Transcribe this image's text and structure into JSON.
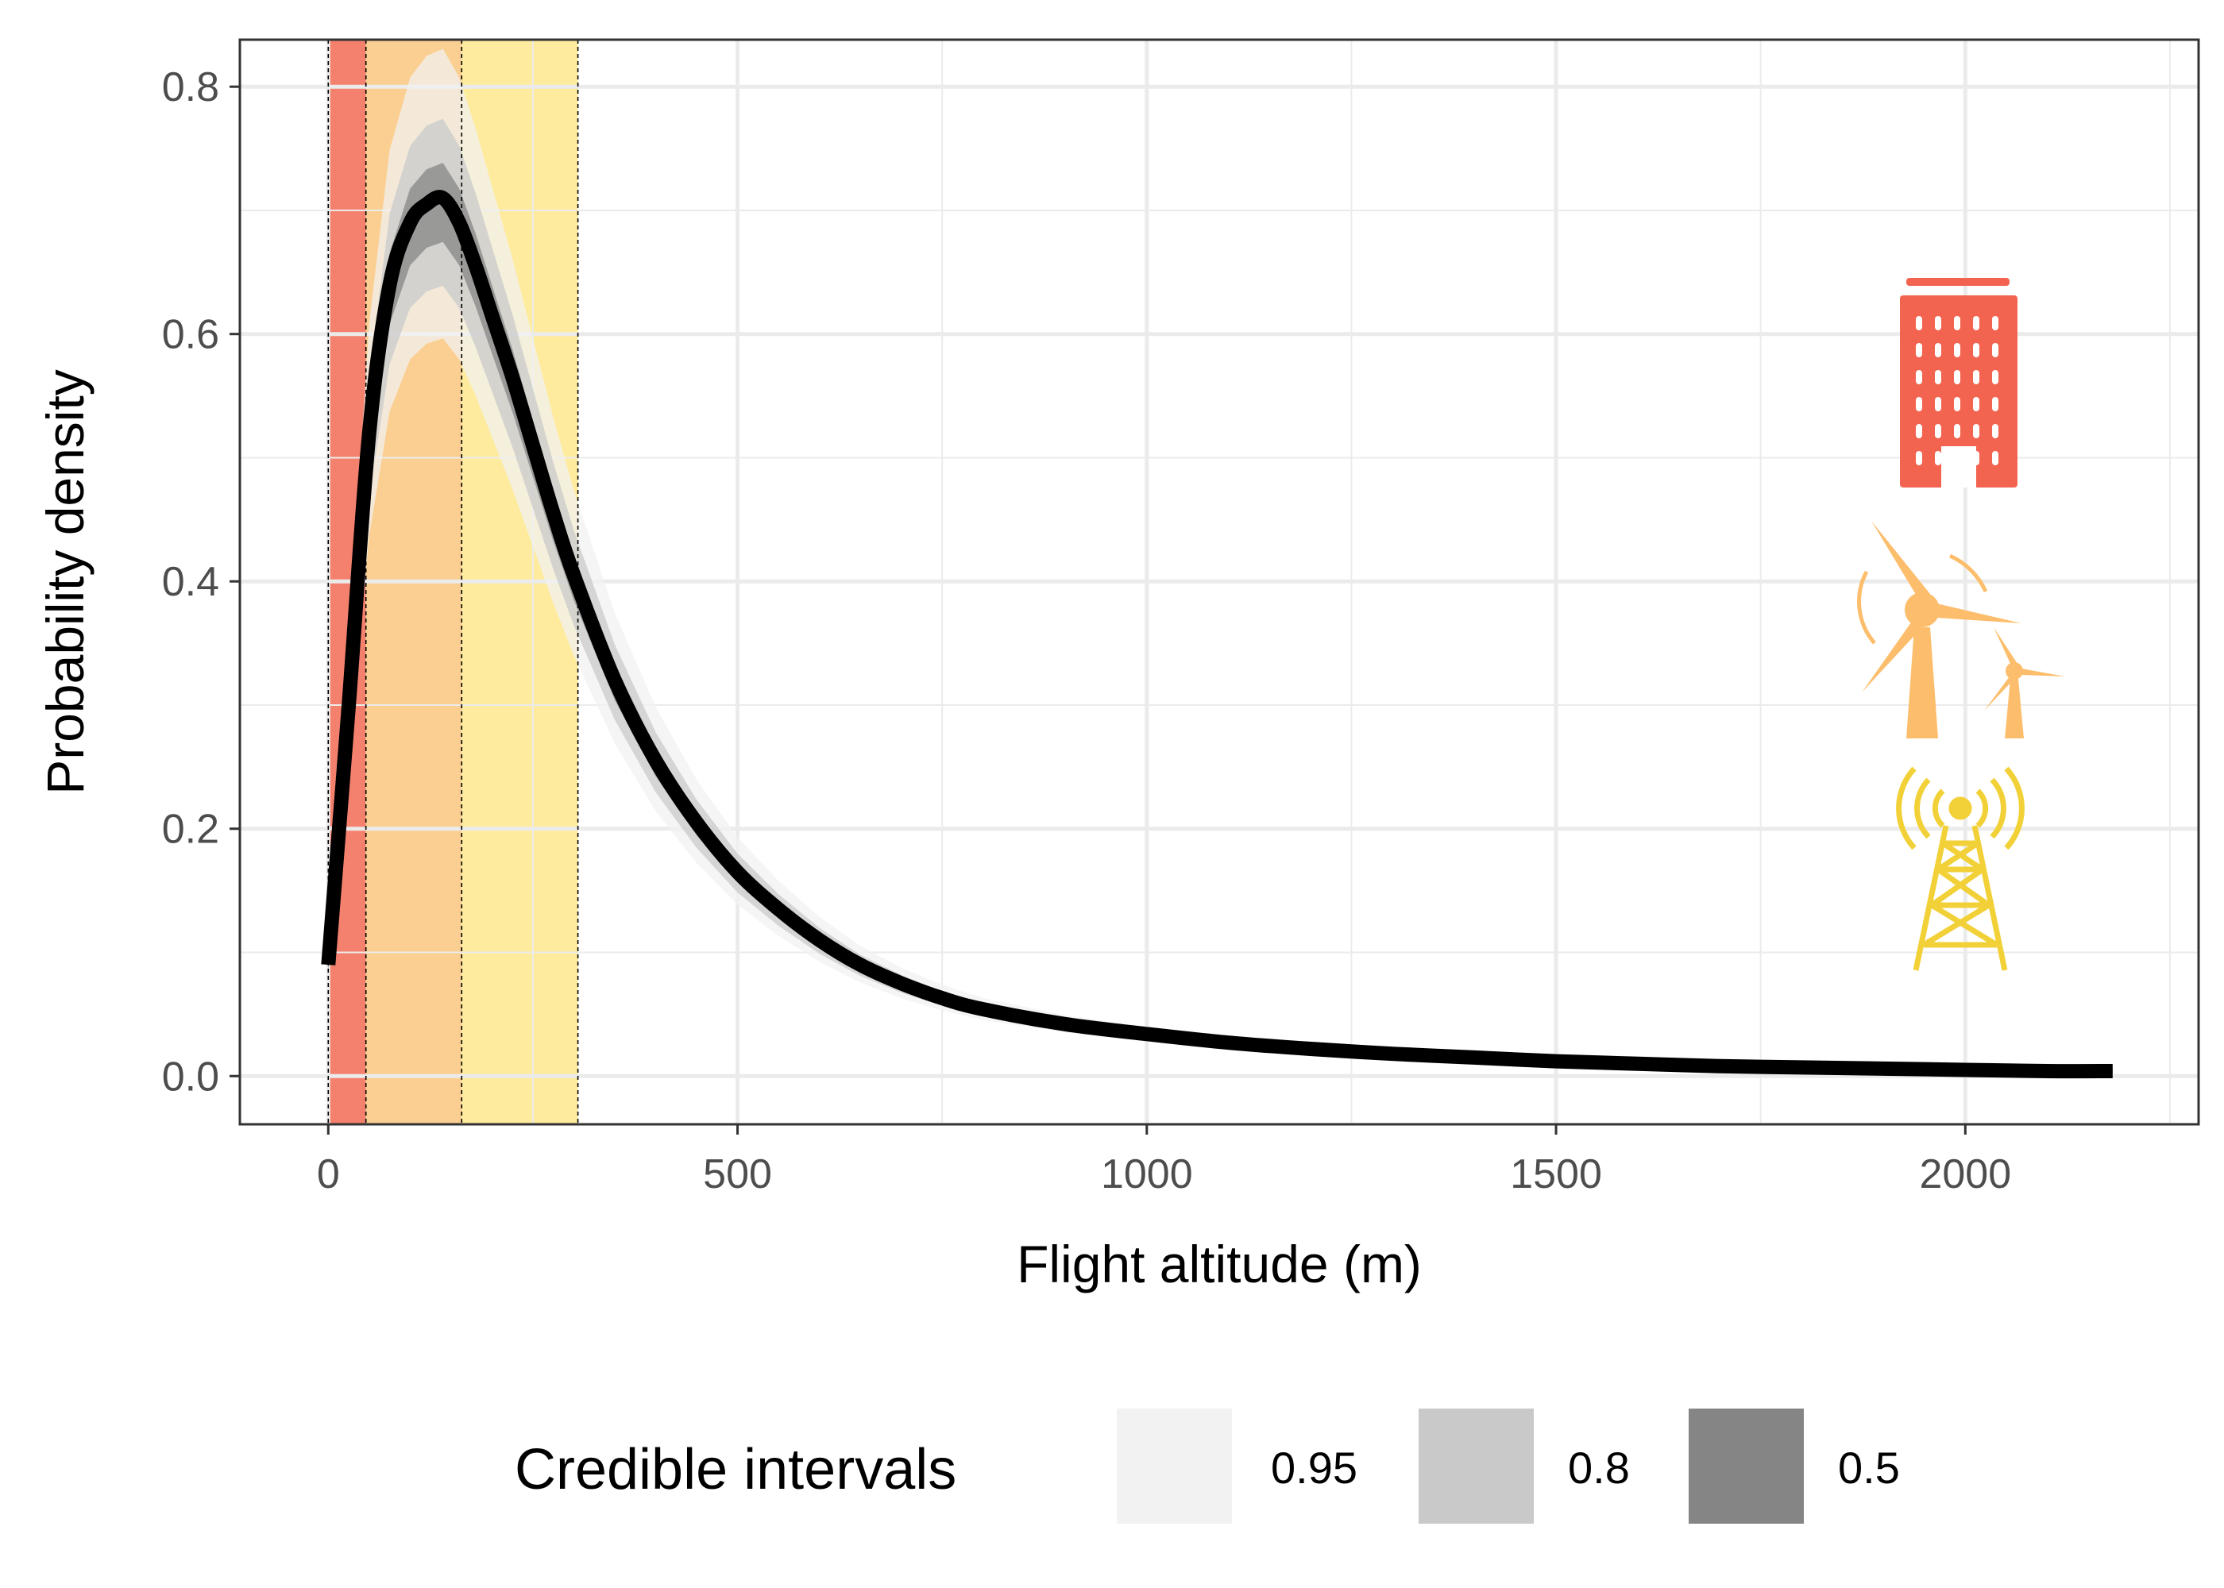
{
  "chart_data": {
    "type": "line",
    "xlabel": "Flight altitude (m)",
    "ylabel": "Probability density",
    "xlim": [
      -108,
      2285
    ],
    "ylim": [
      -0.039,
      0.838
    ],
    "x_ticks": [
      0,
      500,
      1000,
      1500,
      2000
    ],
    "x_tick_labels": [
      "0",
      "500",
      "1000",
      "1500",
      "2000"
    ],
    "x_minor_ticks": [
      250,
      750,
      1250,
      1750,
      2250
    ],
    "y_ticks": [
      0.0,
      0.2,
      0.4,
      0.6,
      0.8
    ],
    "y_tick_labels": [
      "0.0",
      "0.2",
      "0.4",
      "0.6",
      "0.8"
    ],
    "y_minor_ticks": [
      0.1,
      0.3,
      0.5,
      0.7
    ],
    "grid": true,
    "altitude_bands": [
      {
        "name": "building",
        "from": 0,
        "to": 46,
        "color": "#f4816d"
      },
      {
        "name": "wind-turbine",
        "from": 46,
        "to": 163,
        "color": "#fbcf91"
      },
      {
        "name": "telecom-tower",
        "from": 163,
        "to": 305,
        "color": "#feeb9d"
      }
    ],
    "series": [
      {
        "x": [
          0,
          25,
          50,
          75,
          100,
          120,
          140,
          160,
          180,
          200,
          225,
          250,
          275,
          300,
          350,
          400,
          450,
          500,
          550,
          600,
          650,
          700,
          750,
          800,
          900,
          1000,
          1100,
          1200,
          1300,
          1400,
          1500,
          1600,
          1700,
          1800,
          1900,
          2000,
          2100,
          2180
        ],
        "y": [
          0.09,
          0.3,
          0.52,
          0.64,
          0.69,
          0.705,
          0.71,
          0.69,
          0.655,
          0.615,
          0.565,
          0.51,
          0.455,
          0.405,
          0.32,
          0.255,
          0.205,
          0.165,
          0.135,
          0.11,
          0.09,
          0.075,
          0.063,
          0.054,
          0.042,
          0.034,
          0.027,
          0.022,
          0.018,
          0.015,
          0.012,
          0.01,
          0.008,
          0.007,
          0.006,
          0.005,
          0.004,
          0.004
        ]
      }
    ],
    "ribbons": [
      {
        "level": "0.95",
        "color": "#f2f2f2",
        "upper_scale": 1.17,
        "lower_scale": 0.84,
        "min_half_width": 0.006
      },
      {
        "level": "0.8",
        "color": "#c9c9c9",
        "upper_scale": 1.09,
        "lower_scale": 0.9,
        "min_half_width": 0.004
      },
      {
        "level": "0.5",
        "color": "#858585",
        "upper_scale": 1.04,
        "lower_scale": 0.95,
        "min_half_width": 0.002
      }
    ],
    "legend": {
      "title": "Credible intervals",
      "position": "bottom",
      "entries": [
        {
          "label": "0.95",
          "color": "#f2f2f2"
        },
        {
          "label": "0.8",
          "color": "#c9c9c9"
        },
        {
          "label": "0.5",
          "color": "#858585"
        }
      ]
    },
    "icons": [
      {
        "name": "building-icon",
        "color": "#f26450"
      },
      {
        "name": "wind-turbine-icon",
        "color": "#fcbe6c"
      },
      {
        "name": "radio-tower-icon",
        "color": "#f2d138"
      }
    ]
  }
}
